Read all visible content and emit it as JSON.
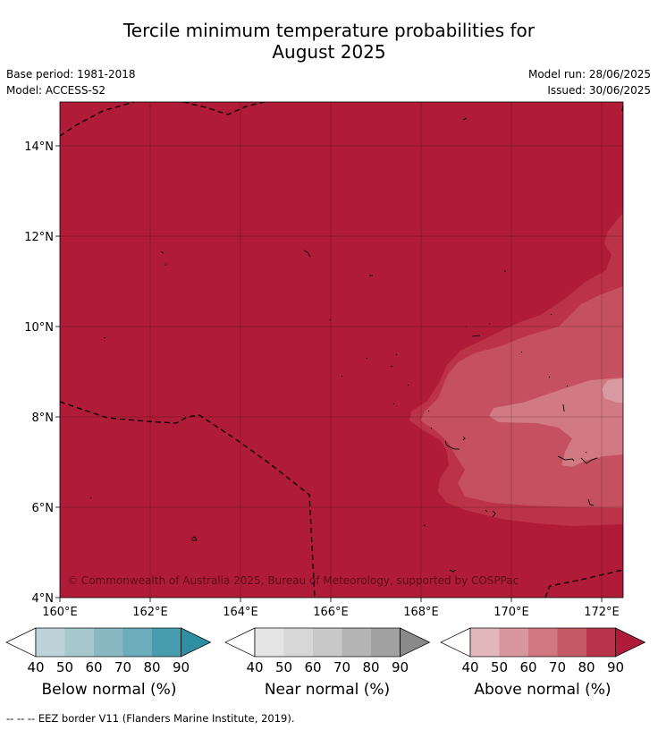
{
  "title": {
    "line1": "Tercile minimum temperature probabilities for",
    "line2": "August 2025"
  },
  "meta": {
    "base_period": "Base period: 1981-2018",
    "model": "Model: ACCESS-S2",
    "model_run": "Model run: 28/06/2025",
    "issued": "Issued: 30/06/2025"
  },
  "map": {
    "lon_ticks": [
      "160°E",
      "162°E",
      "164°E",
      "166°E",
      "168°E",
      "170°E",
      "172°E"
    ],
    "lat_ticks": [
      "4°N",
      "6°N",
      "8°N",
      "10°N",
      "12°N",
      "14°N"
    ],
    "copyright": "© Commonwealth of Australia 2025, Bureau of Meteorology, supported by COSPPac",
    "colors": {
      "above_90": "#b01c38",
      "above_80": "#bc3348",
      "above_70": "#c5505f",
      "above_60": "#d27a84"
    }
  },
  "colorbars": [
    {
      "label": "Below normal (%)",
      "ticks": [
        "40",
        "50",
        "60",
        "70",
        "80",
        "90"
      ],
      "colors": [
        "#bdd3d9",
        "#a6c7cc",
        "#89b8c2",
        "#6badba",
        "#479dad",
        "#2e8fa3"
      ]
    },
    {
      "label": "Near normal (%)",
      "ticks": [
        "40",
        "50",
        "60",
        "70",
        "80",
        "90"
      ],
      "colors": [
        "#e5e5e5",
        "#d7d7d7",
        "#c8c8c8",
        "#b4b4b4",
        "#a1a1a1",
        "#8a8a8a"
      ]
    },
    {
      "label": "Above normal (%)",
      "ticks": [
        "40",
        "50",
        "60",
        "70",
        "80",
        "90"
      ],
      "colors": [
        "#e2b7bc",
        "#d8979e",
        "#d07780",
        "#c55a66",
        "#b9334a",
        "#ae1c3a"
      ]
    }
  ],
  "footer": "--  --  -- EEZ border V11 (Flanders Marine Institute, 2019)."
}
